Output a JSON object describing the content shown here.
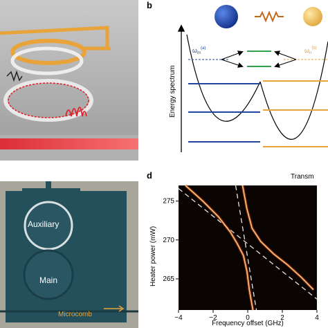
{
  "panels": {
    "b": {
      "label": "b",
      "ylabel": "Energy spectrum",
      "omega_m_main": "ω",
      "omega_m_sub": "m",
      "omega_m_sup": "(a)",
      "omega_n_main": "ω",
      "omega_n_sub": "n",
      "omega_n_sup": "(b)"
    },
    "c": {
      "auxiliary_label": "Auxiliary",
      "main_label": "Main",
      "microcomb_label": "Microcomb"
    },
    "d": {
      "label": "d",
      "corner_text": "Transm",
      "xlabel": "Frequency offset (GHz)",
      "ylabel": "Heater power (mW)",
      "x_ticks": [
        "−4",
        "−2",
        "0",
        "2",
        "4"
      ],
      "y_ticks": [
        "275",
        "270",
        "265"
      ]
    }
  },
  "colors": {
    "accent_orange": "#e8a33a",
    "level_blue": "#2146a0",
    "level_green": "#2fa14a",
    "laser_red": "#e0202a",
    "chip_teal": "#24505c"
  },
  "chart_data": {
    "type": "heatmap",
    "xlabel": "Frequency offset (GHz)",
    "ylabel": "Heater power (mW)",
    "xlim": [
      -4,
      4
    ],
    "ylim": [
      261,
      277
    ],
    "x_ticks": [
      -4,
      -2,
      0,
      2,
      4
    ],
    "y_ticks": [
      265,
      270,
      275
    ],
    "series": [
      {
        "x": [
          -3.6,
          -2.6,
          -1.7,
          -1.0,
          -0.6,
          -0.25,
          -0.05,
          0.1,
          0.3
        ],
        "y": [
          277,
          275,
          273,
          271,
          269.5,
          268,
          266,
          263.5,
          261
        ]
      },
      {
        "x": [
          -0.3,
          -0.05,
          0.25,
          0.75,
          1.5,
          2.3,
          3.1,
          3.8
        ],
        "y": [
          277,
          274,
          271.5,
          269.8,
          268.2,
          266.8,
          265.2,
          263.6
        ]
      }
    ]
  }
}
